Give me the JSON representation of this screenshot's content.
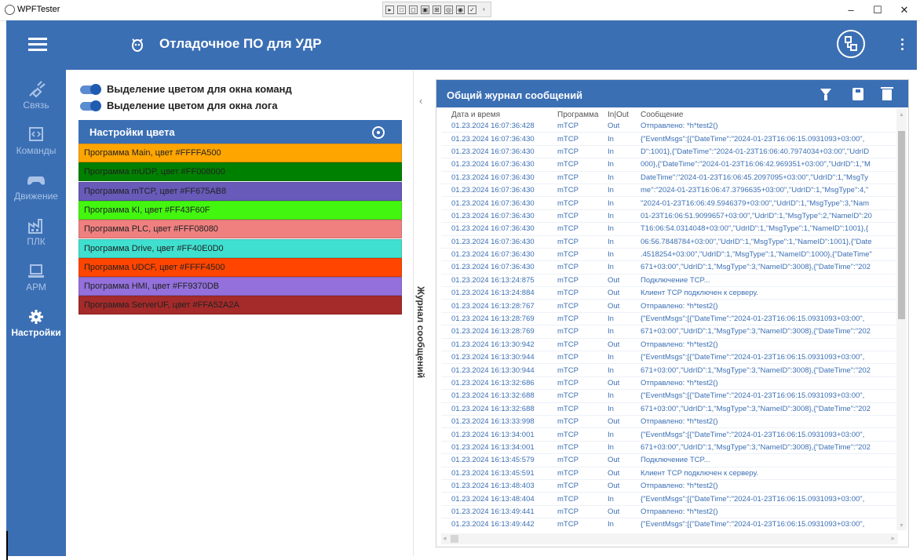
{
  "window": {
    "title": "WPFTester",
    "minimize": "–",
    "maximize": "☐",
    "close": "✕"
  },
  "appbar": {
    "title": "Отладочное ПО для УДР"
  },
  "colors": {
    "primary": "#3b6fb4",
    "text_muted": "#a9c2e6"
  },
  "sidebar": {
    "items": [
      {
        "label": "Связь",
        "icon": "connection-icon"
      },
      {
        "label": "Команды",
        "icon": "commands-icon"
      },
      {
        "label": "Движение",
        "icon": "gamepad-icon"
      },
      {
        "label": "ПЛК",
        "icon": "factory-icon"
      },
      {
        "label": "АРМ",
        "icon": "laptop-icon"
      },
      {
        "label": "Настройки",
        "icon": "gear-icon",
        "active": true
      }
    ]
  },
  "toggles": [
    {
      "label": "Выделение цветом для окна команд",
      "on": true
    },
    {
      "label": "Выделение цветом для окна лога",
      "on": true
    }
  ],
  "color_settings": {
    "title": "Настройки цвета",
    "rows": [
      {
        "label": "Программа Main, цвет #FFFFA500",
        "color": "#FFA500"
      },
      {
        "label": "Программа mUDP, цвет #FF008000",
        "color": "#008000"
      },
      {
        "label": "Программа mTCP, цвет #FF675AB8",
        "color": "#675AB8"
      },
      {
        "label": "Программа KI, цвет #FF43F60F",
        "color": "#43F60F"
      },
      {
        "label": "Программа PLC, цвет #FFF08080",
        "color": "#F08080"
      },
      {
        "label": "Программа Drive, цвет #FF40E0D0",
        "color": "#40E0D0"
      },
      {
        "label": "Программа UDCF, цвет #FFFF4500",
        "color": "#FF4500"
      },
      {
        "label": "Программа HMI, цвет #FF9370DB",
        "color": "#9370DB"
      },
      {
        "label": "Программа ServerUF, цвет #FFA52A2A",
        "color": "#A52A2A"
      }
    ]
  },
  "log_tab_label": "Журнал сообщений",
  "log": {
    "title": "Общий журнал сообщений",
    "columns": [
      "Дата и время",
      "Программа",
      "In|Out",
      "Сообщение"
    ],
    "rows": [
      [
        "01.23.2024 16:07:36:428",
        "mTCP",
        "Out",
        "Отправлено: *h*test2()"
      ],
      [
        "01.23.2024 16:07:36:430",
        "mTCP",
        "In",
        "{\"EventMsgs\":[{\"DateTime\":\"2024-01-23T16:06:15.0931093+03:00\","
      ],
      [
        "01.23.2024 16:07:36:430",
        "mTCP",
        "In",
        "D\":1001},{\"DateTime\":\"2024-01-23T16:06:40.7974034+03:00\",\"UdrID"
      ],
      [
        "01.23.2024 16:07:36:430",
        "mTCP",
        "In",
        "000},{\"DateTime\":\"2024-01-23T16:06:42.969351+03:00\",\"UdrID\":1,\"M"
      ],
      [
        "01.23.2024 16:07:36:430",
        "mTCP",
        "In",
        "DateTime\":\"2024-01-23T16:06:45.2097095+03:00\",\"UdrID\":1,\"MsgTy"
      ],
      [
        "01.23.2024 16:07:36:430",
        "mTCP",
        "In",
        "me\":\"2024-01-23T16:06:47.3796635+03:00\",\"UdrID\":1,\"MsgType\":4,\""
      ],
      [
        "01.23.2024 16:07:36:430",
        "mTCP",
        "In",
        "\"2024-01-23T16:06:49.5946379+03:00\",\"UdrID\":1,\"MsgType\":3,\"Nam"
      ],
      [
        "01.23.2024 16:07:36:430",
        "mTCP",
        "In",
        "01-23T16:06:51.9099657+03:00\",\"UdrID\":1,\"MsgType\":2,\"NameID\":20"
      ],
      [
        "01.23.2024 16:07:36:430",
        "mTCP",
        "In",
        "T16:06:54.0314048+03:00\",\"UdrID\":1,\"MsgType\":1,\"NameID\":1001},{"
      ],
      [
        "01.23.2024 16:07:36:430",
        "mTCP",
        "In",
        "06:56.7848784+03:00\",\"UdrID\":1,\"MsgType\":1,\"NameID\":1001},{\"Date"
      ],
      [
        "01.23.2024 16:07:36:430",
        "mTCP",
        "In",
        ".4518254+03:00\",\"UdrID\":1,\"MsgType\":1,\"NameID\":1000},{\"DateTime\""
      ],
      [
        "01.23.2024 16:07:36:430",
        "mTCP",
        "In",
        "671+03:00\",\"UdrID\":1,\"MsgType\":3,\"NameID\":3008},{\"DateTime\":\"202"
      ],
      [
        "01.23.2024 16:13:24:875",
        "mTCP",
        "Out",
        "Подключение TCP..."
      ],
      [
        "01.23.2024 16:13:24:884",
        "mTCP",
        "Out",
        "Клиент TCP подключен к серверу."
      ],
      [
        "01.23.2024 16:13:28:767",
        "mTCP",
        "Out",
        "Отправлено: *h*test2()"
      ],
      [
        "01.23.2024 16:13:28:769",
        "mTCP",
        "In",
        "{\"EventMsgs\":[{\"DateTime\":\"2024-01-23T16:06:15.0931093+03:00\","
      ],
      [
        "01.23.2024 16:13:28:769",
        "mTCP",
        "In",
        "671+03:00\",\"UdrID\":1,\"MsgType\":3,\"NameID\":3008},{\"DateTime\":\"202"
      ],
      [
        "01.23.2024 16:13:30:942",
        "mTCP",
        "Out",
        "Отправлено: *h*test2()"
      ],
      [
        "01.23.2024 16:13:30:944",
        "mTCP",
        "In",
        "{\"EventMsgs\":[{\"DateTime\":\"2024-01-23T16:06:15.0931093+03:00\","
      ],
      [
        "01.23.2024 16:13:30:944",
        "mTCP",
        "In",
        "671+03:00\",\"UdrID\":1,\"MsgType\":3,\"NameID\":3008},{\"DateTime\":\"202"
      ],
      [
        "01.23.2024 16:13:32:686",
        "mTCP",
        "Out",
        "Отправлено: *h*test2()"
      ],
      [
        "01.23.2024 16:13:32:688",
        "mTCP",
        "In",
        "{\"EventMsgs\":[{\"DateTime\":\"2024-01-23T16:06:15.0931093+03:00\","
      ],
      [
        "01.23.2024 16:13:32:688",
        "mTCP",
        "In",
        "671+03:00\",\"UdrID\":1,\"MsgType\":3,\"NameID\":3008},{\"DateTime\":\"202"
      ],
      [
        "01.23.2024 16:13:33:998",
        "mTCP",
        "Out",
        "Отправлено: *h*test2()"
      ],
      [
        "01.23.2024 16:13:34:001",
        "mTCP",
        "In",
        "{\"EventMsgs\":[{\"DateTime\":\"2024-01-23T16:06:15.0931093+03:00\","
      ],
      [
        "01.23.2024 16:13:34:001",
        "mTCP",
        "In",
        "671+03:00\",\"UdrID\":1,\"MsgType\":3,\"NameID\":3008},{\"DateTime\":\"202"
      ],
      [
        "01.23.2024 16:13:45:579",
        "mTCP",
        "Out",
        "Подключение TCP..."
      ],
      [
        "01.23.2024 16:13:45:591",
        "mTCP",
        "Out",
        "Клиент TCP подключен к серверу."
      ],
      [
        "01.23.2024 16:13:48:403",
        "mTCP",
        "Out",
        "Отправлено: *h*test2()"
      ],
      [
        "01.23.2024 16:13:48:404",
        "mTCP",
        "In",
        "{\"EventMsgs\":[{\"DateTime\":\"2024-01-23T16:06:15.0931093+03:00\","
      ],
      [
        "01.23.2024 16:13:49:441",
        "mTCP",
        "Out",
        "Отправлено: *h*test2()"
      ],
      [
        "01.23.2024 16:13:49:442",
        "mTCP",
        "In",
        "{\"EventMsgs\":[{\"DateTime\":\"2024-01-23T16:06:15.0931093+03:00\","
      ]
    ]
  }
}
